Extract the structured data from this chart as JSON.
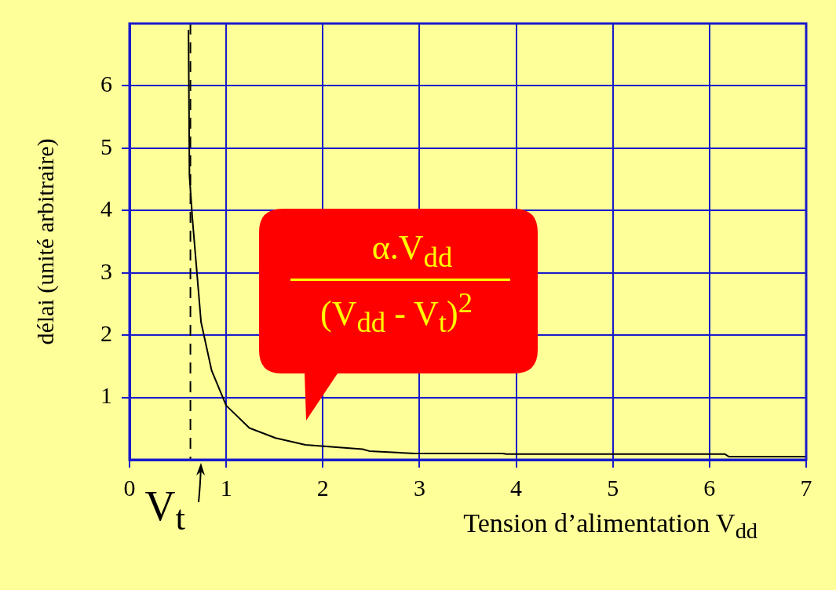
{
  "chart_data": {
    "type": "line",
    "xlabel": "Tension d’alimentation V$_{dd}$",
    "ylabel": "délai (unité arbitraire)",
    "annotations": [
      "α.V$_{dd}$",
      "(V$_{dd}$ - V$_{t}$)$^{2}$"
    ],
    "x": [
      0.61,
      0.62,
      0.65,
      0.74,
      0.85,
      1.0,
      1.24,
      1.51,
      1.82,
      2.41,
      2.48,
      2.95,
      3.86,
      3.9,
      6.16,
      6.2,
      7
    ],
    "series": [
      {
        "color": "#000000",
        "values": [
          6.9,
          4.56,
          3.88,
          2.21,
          1.43,
          0.87,
          0.51,
          0.35,
          0.24,
          0.17,
          0.14,
          0.1,
          0.1,
          0.09,
          0.09,
          0.05,
          0.05
        ]
      }
    ],
    "xlim": [
      0,
      7
    ],
    "ylim": [
      0,
      7
    ],
    "xticks": [
      0,
      1,
      2,
      3,
      4,
      5,
      6,
      7
    ],
    "yticks": [
      1,
      2,
      3,
      4,
      5,
      6
    ],
    "grid": true,
    "legend": false,
    "marker": "none",
    "line_style": "solid",
    "ref_lines": [
      {
        "axis": "x",
        "value": 0.63,
        "label": "V$_{t}$",
        "line_style": "dashed",
        "color": "#000000"
      }
    ]
  }
}
